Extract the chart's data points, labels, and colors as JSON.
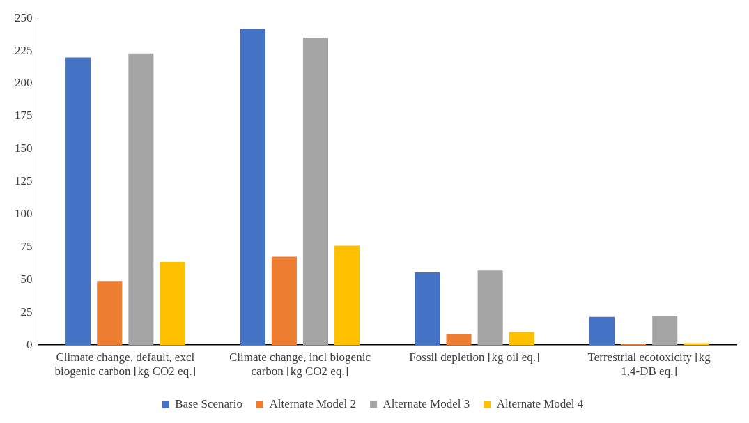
{
  "chart_data": {
    "type": "bar",
    "categories": [
      "Climate change, default, excl biogenic carbon [kg CO2 eq.]",
      "Climate change, incl biogenic carbon [kg CO2 eq.]",
      "Fossil depletion [kg oil eq.]",
      "Terrestrial ecotoxicity [kg 1,4-DB eq.]"
    ],
    "series": [
      {
        "name": "Base Scenario",
        "color": "#4472c4",
        "values": [
          220,
          242,
          55.5,
          21.5
        ]
      },
      {
        "name": "Alternate Model 2",
        "color": "#ed7d31",
        "values": [
          49,
          67.5,
          8.5,
          1
        ]
      },
      {
        "name": "Alternate Model 3",
        "color": "#a5a5a5",
        "values": [
          223,
          235,
          57,
          22
        ]
      },
      {
        "name": "Alternate Model 4",
        "color": "#ffc000",
        "values": [
          63.5,
          76,
          10,
          1.5
        ]
      }
    ],
    "ylim": [
      0,
      250
    ],
    "yticks": [
      0,
      25,
      50,
      75,
      100,
      125,
      150,
      175,
      200,
      225,
      250
    ],
    "grid": false,
    "legend": "bottom"
  }
}
